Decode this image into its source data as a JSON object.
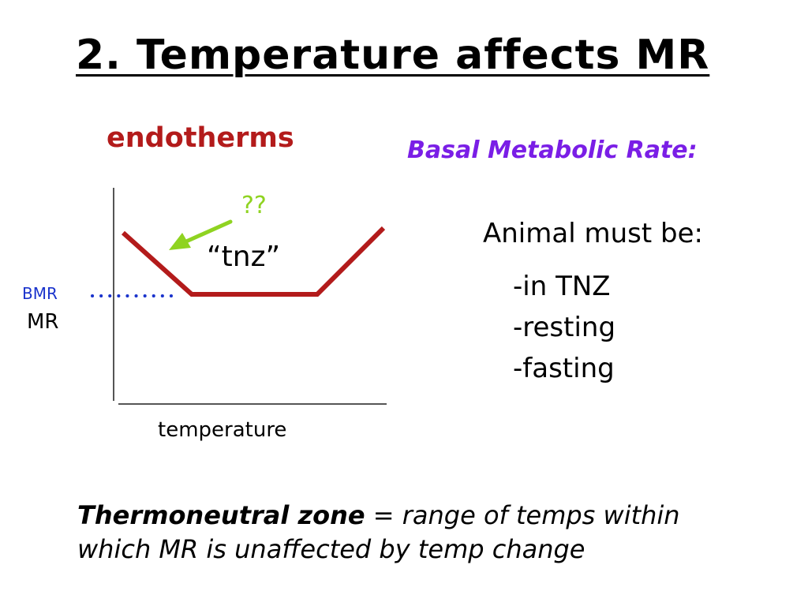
{
  "title": "2. Temperature affects MR",
  "graph": {
    "heading": "endotherms",
    "question_mark": "??",
    "tnz_label": "“tnz”",
    "bmr_label": "BMR",
    "y_axis_label": "MR",
    "x_axis_label": "temperature",
    "colors": {
      "curve": "#b31b1b",
      "arrow": "#8fd321",
      "bmr_dots": "#1a33cc",
      "axes": "#555555"
    }
  },
  "bmr_box": {
    "heading": "Basal Metabolic Rate:",
    "intro": "Animal must be:",
    "requirements": [
      "-in TNZ",
      "-resting",
      "-fasting"
    ]
  },
  "definition": {
    "term": "Thermoneutral zone",
    "text_line1": " = range of temps within",
    "text_line2": "which MR is unaffected by temp change"
  }
}
